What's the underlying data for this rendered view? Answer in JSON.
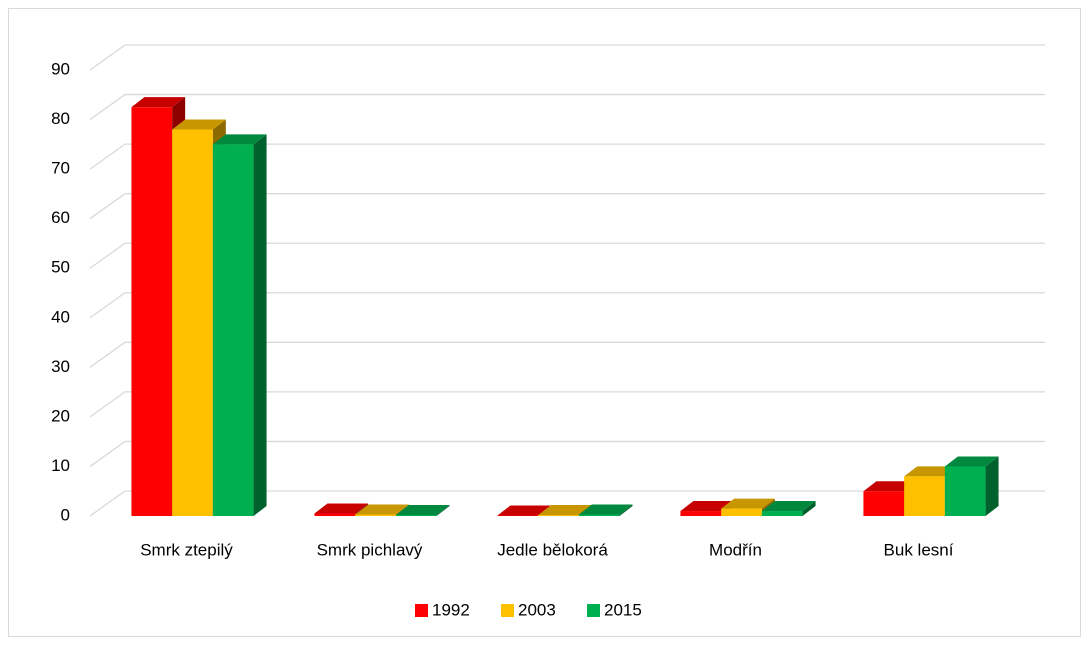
{
  "chart_data": {
    "type": "bar3d",
    "categories": [
      "Smrk ztepilý",
      "Smrk pichlavý",
      "Jedle bělokorá",
      "Modřín",
      "Buk lesní"
    ],
    "series": [
      {
        "name": "1992",
        "color": "#ff0000",
        "values": [
          82.5,
          0.5,
          0.1,
          1,
          5
        ]
      },
      {
        "name": "2003",
        "color": "#ffc000",
        "values": [
          78,
          0.3,
          0.2,
          1.5,
          8
        ]
      },
      {
        "name": "2015",
        "color": "#00b050",
        "values": [
          75,
          0.2,
          0.3,
          1,
          10
        ]
      }
    ],
    "ylim": [
      0,
      90
    ],
    "yticks": [
      0,
      10,
      20,
      30,
      40,
      50,
      60,
      70,
      80,
      90
    ],
    "grid": true,
    "legend": "bottom"
  }
}
